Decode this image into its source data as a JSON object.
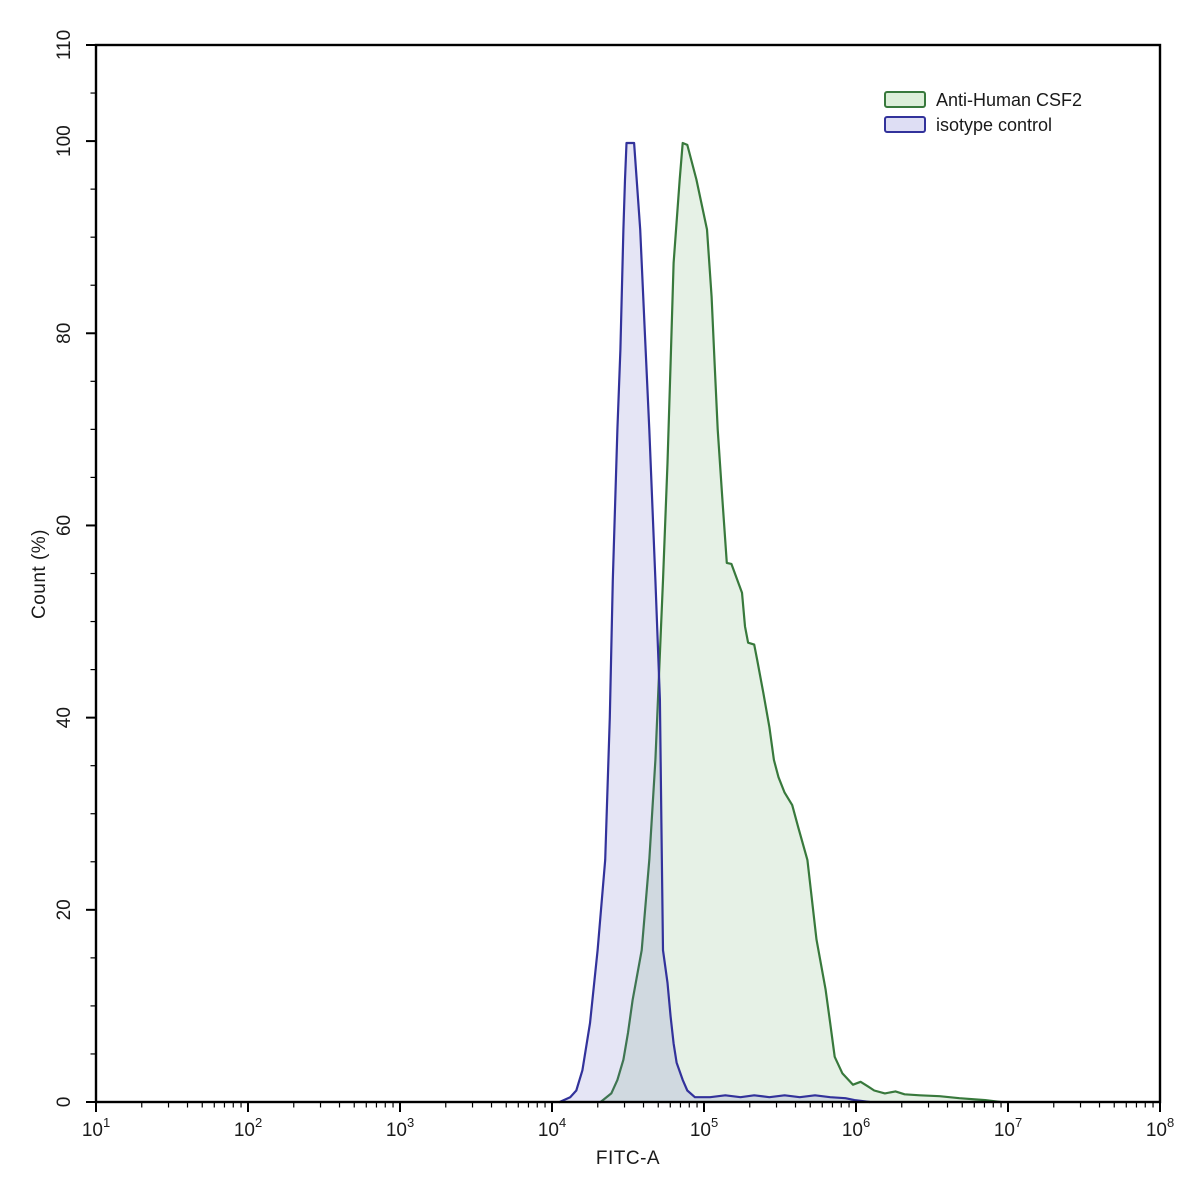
{
  "figure": {
    "background_color": "#ffffff",
    "axis_color": "#000000",
    "text_color": "#1a1a1a"
  },
  "legend": {
    "position": "upper-right",
    "entries": [
      {
        "label": "Anti-Human CSF2",
        "stroke": "#38793c",
        "swatch_fill": "#dcefd9"
      },
      {
        "label": "isotype control",
        "stroke": "#32329b",
        "swatch_fill": "#dedef4"
      }
    ]
  },
  "chart_data": {
    "type": "area",
    "title": "",
    "xlabel": "FITC-A",
    "ylabel": "Count  (%)",
    "x_scale": "log10",
    "xlim_log10": [
      1,
      8
    ],
    "ylim": [
      0,
      110
    ],
    "x_tick_base": "10",
    "x_tick_exponents": [
      1,
      2,
      3,
      4,
      5,
      6,
      7,
      8
    ],
    "x_minor_ticks": "log-decades 2-9",
    "y_major_ticks": [
      0,
      20,
      40,
      60,
      80,
      100,
      110
    ],
    "y_major_tick_labels": [
      "0",
      "20",
      "40",
      "60",
      "80",
      "100",
      "110"
    ],
    "y_minor_step": 5,
    "grid": false,
    "legend_position": "upper right",
    "series": [
      {
        "name": "Anti-Human CSF2",
        "stroke": "#38793c",
        "fill": "rgba(100,170,100,0.16)",
        "points_log10x_pct": [
          [
            4.32,
            0
          ],
          [
            4.39,
            0.9
          ],
          [
            4.43,
            2.3
          ],
          [
            4.47,
            4.4
          ],
          [
            4.5,
            7.2
          ],
          [
            4.53,
            10.6
          ],
          [
            4.59,
            15.8
          ],
          [
            4.64,
            25.2
          ],
          [
            4.68,
            35.6
          ],
          [
            4.73,
            54.3
          ],
          [
            4.76,
            66.5
          ],
          [
            4.78,
            76.9
          ],
          [
            4.8,
            87.3
          ],
          [
            4.84,
            96.0
          ],
          [
            4.86,
            99.8
          ],
          [
            4.89,
            99.6
          ],
          [
            4.95,
            96.0
          ],
          [
            5.02,
            90.8
          ],
          [
            5.05,
            83.8
          ],
          [
            5.07,
            76.9
          ],
          [
            5.09,
            70.0
          ],
          [
            5.12,
            63.0
          ],
          [
            5.15,
            56.1
          ],
          [
            5.18,
            56.0
          ],
          [
            5.25,
            53.0
          ],
          [
            5.27,
            49.5
          ],
          [
            5.29,
            47.8
          ],
          [
            5.33,
            47.6
          ],
          [
            5.35,
            46.0
          ],
          [
            5.39,
            42.6
          ],
          [
            5.43,
            39.0
          ],
          [
            5.46,
            35.6
          ],
          [
            5.49,
            33.8
          ],
          [
            5.53,
            32.2
          ],
          [
            5.58,
            30.9
          ],
          [
            5.62,
            28.6
          ],
          [
            5.68,
            25.2
          ],
          [
            5.74,
            16.9
          ],
          [
            5.8,
            11.7
          ],
          [
            5.83,
            8.2
          ],
          [
            5.86,
            4.7
          ],
          [
            5.91,
            3.0
          ],
          [
            5.98,
            1.8
          ],
          [
            6.03,
            2.1
          ],
          [
            6.08,
            1.6
          ],
          [
            6.12,
            1.2
          ],
          [
            6.19,
            0.9
          ],
          [
            6.26,
            1.1
          ],
          [
            6.32,
            0.8
          ],
          [
            6.42,
            0.7
          ],
          [
            6.55,
            0.6
          ],
          [
            6.68,
            0.4
          ],
          [
            6.85,
            0.2
          ],
          [
            6.95,
            0
          ]
        ]
      },
      {
        "name": "isotype control",
        "stroke": "#32329b",
        "fill": "rgba(100,100,195,0.17)",
        "points_log10x_pct": [
          [
            4.05,
            0
          ],
          [
            4.12,
            0.5
          ],
          [
            4.16,
            1.2
          ],
          [
            4.2,
            3.3
          ],
          [
            4.25,
            8.2
          ],
          [
            4.3,
            15.8
          ],
          [
            4.35,
            25.2
          ],
          [
            4.38,
            40.0
          ],
          [
            4.4,
            54.3
          ],
          [
            4.43,
            70.0
          ],
          [
            4.45,
            78.3
          ],
          [
            4.47,
            90.8
          ],
          [
            4.48,
            96.0
          ],
          [
            4.49,
            99.8
          ],
          [
            4.54,
            99.8
          ],
          [
            4.58,
            90.8
          ],
          [
            4.61,
            80.4
          ],
          [
            4.64,
            70.0
          ],
          [
            4.68,
            54.3
          ],
          [
            4.71,
            41.9
          ],
          [
            4.72,
            29.0
          ],
          [
            4.73,
            15.8
          ],
          [
            4.76,
            12.4
          ],
          [
            4.78,
            8.9
          ],
          [
            4.8,
            6.1
          ],
          [
            4.82,
            4.1
          ],
          [
            4.86,
            2.3
          ],
          [
            4.89,
            1.2
          ],
          [
            4.94,
            0.5
          ],
          [
            5.04,
            0.5
          ],
          [
            5.14,
            0.7
          ],
          [
            5.24,
            0.5
          ],
          [
            5.33,
            0.7
          ],
          [
            5.43,
            0.5
          ],
          [
            5.53,
            0.7
          ],
          [
            5.63,
            0.5
          ],
          [
            5.73,
            0.7
          ],
          [
            5.83,
            0.5
          ],
          [
            5.93,
            0.4
          ],
          [
            5.99,
            0.2
          ],
          [
            6.09,
            0
          ]
        ]
      }
    ]
  }
}
